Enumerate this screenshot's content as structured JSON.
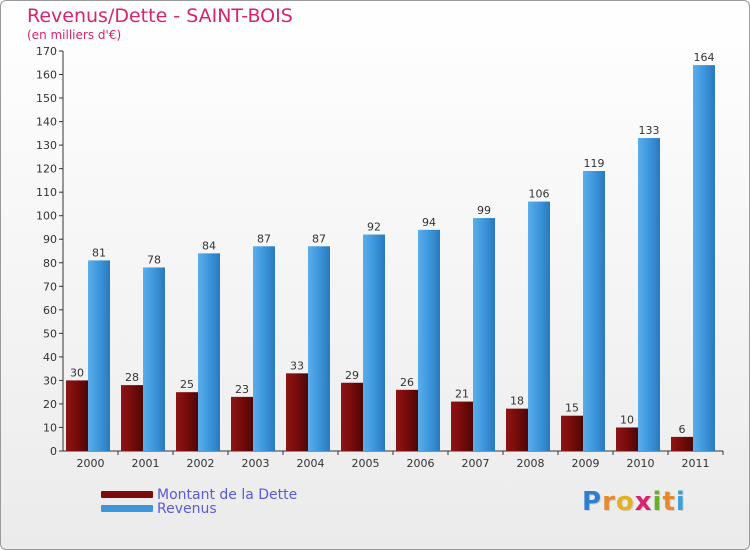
{
  "title": "Revenus/Dette - SAINT-BOIS",
  "subtitle": "(en milliers d'€)",
  "logo": {
    "letters": [
      "P",
      "r",
      "o",
      "x",
      "i",
      "t",
      "i"
    ],
    "colors": [
      "#2f7fce",
      "#e7892c",
      "#e8b020",
      "#d6246e",
      "#6aad2b",
      "#e7892c",
      "#3aa0d8"
    ]
  },
  "colors": {
    "debt": "#7a0c0c",
    "revenue": "#3d96dc",
    "title": "#d6246e",
    "legend_text": "#5a5ad8"
  },
  "chart_data": {
    "type": "bar",
    "categories": [
      "2000",
      "2001",
      "2002",
      "2003",
      "2004",
      "2005",
      "2006",
      "2007",
      "2008",
      "2009",
      "2010",
      "2011"
    ],
    "series": [
      {
        "name": "Montant de la Dette",
        "values": [
          30,
          28,
          25,
          23,
          33,
          29,
          26,
          21,
          18,
          15,
          10,
          6
        ]
      },
      {
        "name": "Revenus",
        "values": [
          81,
          78,
          84,
          87,
          87,
          92,
          94,
          99,
          106,
          119,
          133,
          164
        ]
      }
    ],
    "ylim": [
      0,
      170
    ],
    "yticks": [
      0,
      10,
      20,
      30,
      40,
      50,
      60,
      70,
      80,
      90,
      100,
      110,
      120,
      130,
      140,
      150,
      160,
      170
    ],
    "grid": false,
    "legend_position": "bottom-left"
  }
}
